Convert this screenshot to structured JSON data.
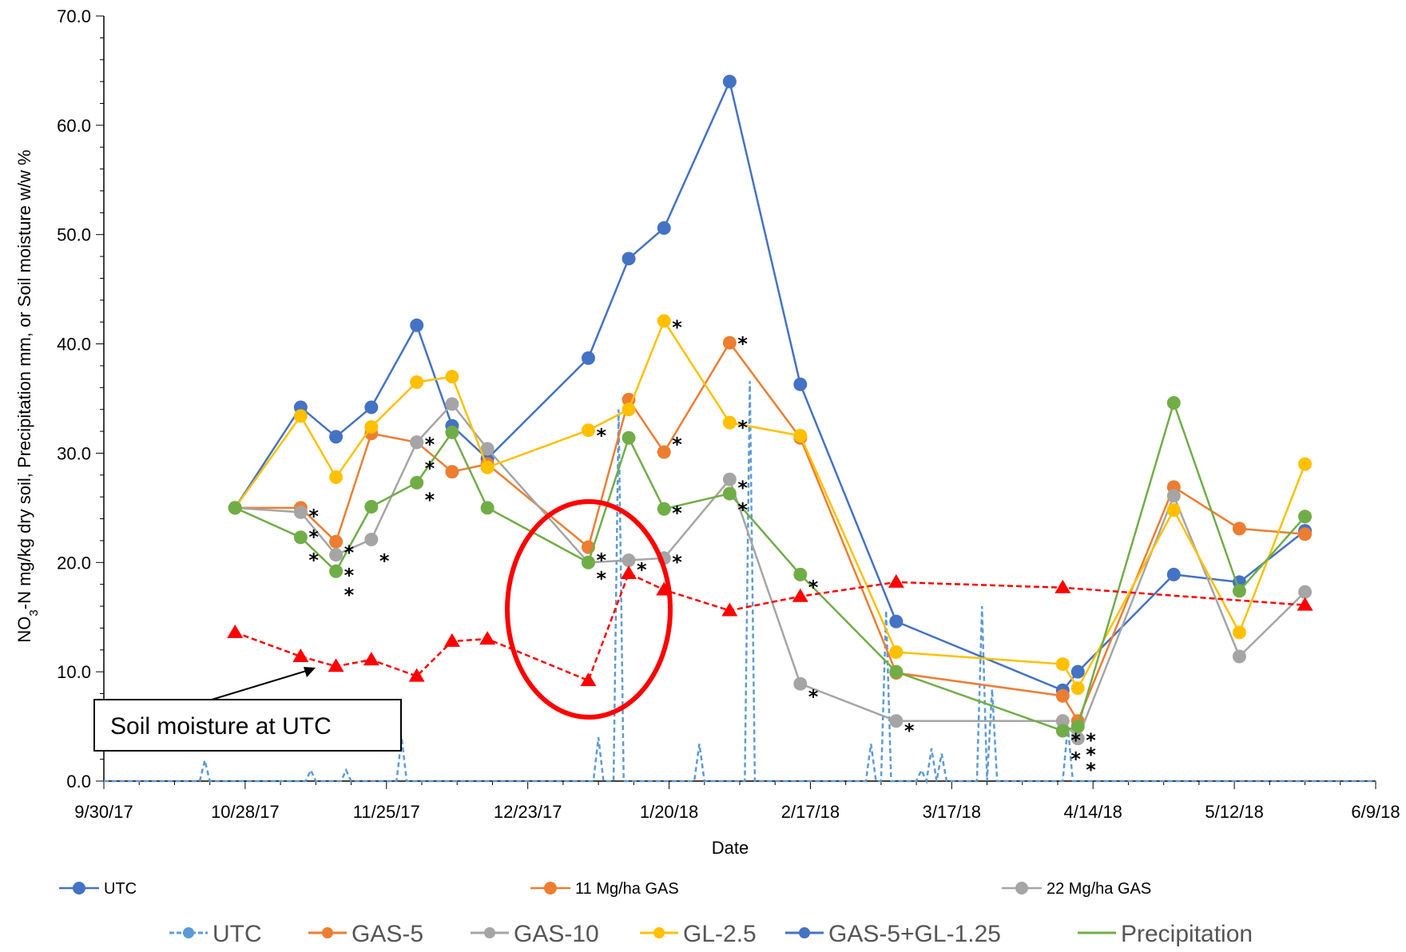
{
  "chart_data": {
    "type": "line",
    "xlabel": "Date",
    "ylabel_parts": [
      "NO",
      "3",
      "-N mg/kg dry soil, Precipitation mm, or Soil moisture w/w %"
    ],
    "ylim": [
      0,
      70
    ],
    "y_ticks": [
      "0.0",
      "10.0",
      "20.0",
      "30.0",
      "40.0",
      "50.0",
      "60.0",
      "70.0"
    ],
    "x_ticks": [
      "9/30/17",
      "10/28/17",
      "11/25/17",
      "12/23/17",
      "1/20/18",
      "2/17/18",
      "3/17/18",
      "4/14/18",
      "5/12/18",
      "6/9/18"
    ],
    "x_tick_days": [
      0,
      28,
      56,
      84,
      112,
      140,
      168,
      196,
      224,
      252
    ],
    "x_start": "9/30/17",
    "series": [
      {
        "name": "GAS-5+GL-1.25",
        "color": "#4472C4",
        "marker": "circle",
        "points": [
          [
            "10/26/17",
            25.0
          ],
          [
            "11/8/17",
            34.2
          ],
          [
            "11/15/17",
            31.5
          ],
          [
            "11/22/17",
            34.2
          ],
          [
            "12/1/17",
            41.7
          ],
          [
            "12/8/17",
            32.5
          ],
          [
            "12/15/17",
            29.5
          ],
          [
            "1/4/18",
            38.7
          ],
          [
            "1/12/18",
            47.8
          ],
          [
            "1/19/18",
            50.6
          ],
          [
            "2/1/18",
            64.0
          ],
          [
            "2/15/18",
            36.3
          ],
          [
            "3/6/18",
            14.6
          ],
          [
            "4/8/18",
            8.3
          ],
          [
            "4/11/18",
            10.0
          ],
          [
            "4/30/18",
            18.9
          ],
          [
            "5/13/18",
            18.2
          ],
          [
            "5/26/18",
            22.9
          ]
        ]
      },
      {
        "name": "GAS-5",
        "color": "#ED7D31",
        "marker": "circle",
        "points": [
          [
            "10/26/17",
            25.0
          ],
          [
            "11/8/17",
            25.0
          ],
          [
            "11/15/17",
            21.9
          ],
          [
            "11/22/17",
            31.8
          ],
          [
            "12/1/17",
            31.0
          ],
          [
            "12/8/17",
            28.3
          ],
          [
            "12/15/17",
            29.0
          ],
          [
            "1/4/18",
            21.4
          ],
          [
            "1/12/18",
            34.9
          ],
          [
            "1/19/18",
            30.1
          ],
          [
            "2/1/18",
            40.1
          ],
          [
            "2/15/18",
            31.4
          ],
          [
            "3/6/18",
            9.9
          ],
          [
            "4/8/18",
            7.8
          ],
          [
            "4/11/18",
            5.5
          ],
          [
            "4/30/18",
            26.9
          ],
          [
            "5/13/18",
            23.1
          ],
          [
            "5/26/18",
            22.6
          ]
        ]
      },
      {
        "name": "GAS-10",
        "color": "#A5A5A5",
        "marker": "circle",
        "points": [
          [
            "10/26/17",
            25.0
          ],
          [
            "11/8/17",
            24.6
          ],
          [
            "11/15/17",
            20.7
          ],
          [
            "11/22/17",
            22.1
          ],
          [
            "12/1/17",
            31.0
          ],
          [
            "12/8/17",
            34.5
          ],
          [
            "12/15/17",
            30.4
          ],
          [
            "1/4/18",
            20.0
          ],
          [
            "1/12/18",
            20.2
          ],
          [
            "1/19/18",
            20.4
          ],
          [
            "2/1/18",
            27.6
          ],
          [
            "2/15/18",
            8.9
          ],
          [
            "3/6/18",
            5.5
          ],
          [
            "4/8/18",
            5.5
          ],
          [
            "4/11/18",
            3.9
          ],
          [
            "4/30/18",
            26.1
          ],
          [
            "5/13/18",
            11.4
          ],
          [
            "5/26/18",
            17.3
          ]
        ]
      },
      {
        "name": "GL-2.5",
        "color": "#FFC000",
        "marker": "circle",
        "points": [
          [
            "10/26/17",
            25.0
          ],
          [
            "11/8/17",
            33.4
          ],
          [
            "11/15/17",
            27.8
          ],
          [
            "11/22/17",
            32.4
          ],
          [
            "12/1/17",
            36.5
          ],
          [
            "12/8/17",
            37.0
          ],
          [
            "12/15/17",
            28.7
          ],
          [
            "1/4/18",
            32.1
          ],
          [
            "1/12/18",
            34.0
          ],
          [
            "1/19/18",
            42.1
          ],
          [
            "2/1/18",
            32.8
          ],
          [
            "2/15/18",
            31.6
          ],
          [
            "3/6/18",
            11.8
          ],
          [
            "4/8/18",
            10.7
          ],
          [
            "4/11/18",
            8.5
          ],
          [
            "4/30/18",
            24.8
          ],
          [
            "5/13/18",
            13.6
          ],
          [
            "5/26/18",
            29.0
          ]
        ]
      },
      {
        "name": "Precipitation",
        "color": "#70AD47",
        "marker": "circle",
        "points": [
          [
            "10/26/17",
            25.0
          ],
          [
            "11/8/17",
            22.3
          ],
          [
            "11/15/17",
            19.2
          ],
          [
            "11/22/17",
            25.1
          ],
          [
            "12/1/17",
            27.3
          ],
          [
            "12/8/17",
            31.9
          ],
          [
            "12/15/17",
            25.0
          ],
          [
            "1/4/18",
            20.0
          ],
          [
            "1/12/18",
            31.4
          ],
          [
            "1/19/18",
            24.9
          ],
          [
            "2/1/18",
            26.3
          ],
          [
            "2/15/18",
            18.9
          ],
          [
            "3/6/18",
            10.0
          ],
          [
            "4/8/18",
            4.6
          ],
          [
            "4/11/18",
            5.0
          ],
          [
            "4/30/18",
            34.6
          ],
          [
            "5/13/18",
            17.4
          ],
          [
            "5/26/18",
            24.2
          ]
        ]
      }
    ],
    "soil_moisture": {
      "name": "Soil moisture at UTC",
      "color": "#FF0000",
      "marker": "triangle",
      "points": [
        [
          "10/26/17",
          13.6
        ],
        [
          "11/8/17",
          11.4
        ],
        [
          "11/15/17",
          10.5
        ],
        [
          "11/22/17",
          11.1
        ],
        [
          "12/1/17",
          9.6
        ],
        [
          "12/8/17",
          12.8
        ],
        [
          "12/15/17",
          13.0
        ],
        [
          "1/4/18",
          9.2
        ],
        [
          "1/12/18",
          19.0
        ],
        [
          "1/19/18",
          17.5
        ],
        [
          "2/1/18",
          15.6
        ],
        [
          "2/15/18",
          16.9
        ],
        [
          "3/6/18",
          18.2
        ],
        [
          "4/8/18",
          17.7
        ],
        [
          "5/26/18",
          16.1
        ]
      ]
    },
    "precipitation": {
      "name": "UTC",
      "color": "#5B9BD5",
      "points": [
        [
          "10/19/17",
          0
        ],
        [
          "10/20/17",
          1.9
        ],
        [
          "10/21/17",
          0
        ],
        [
          "11/9/17",
          0
        ],
        [
          "11/10/17",
          1.0
        ],
        [
          "11/11/17",
          0
        ],
        [
          "11/16/17",
          0
        ],
        [
          "11/17/17",
          1.0
        ],
        [
          "11/18/17",
          0
        ],
        [
          "11/27/17",
          0
        ],
        [
          "11/28/17",
          4.0
        ],
        [
          "11/29/17",
          0
        ],
        [
          "1/5/18",
          0
        ],
        [
          "1/6/18",
          4.0
        ],
        [
          "1/7/18",
          0
        ],
        [
          "1/9/18",
          0
        ],
        [
          "1/10/18",
          34.0
        ],
        [
          "1/11/18",
          0
        ],
        [
          "1/25/18",
          0
        ],
        [
          "1/26/18",
          3.4
        ],
        [
          "1/27/18",
          0
        ],
        [
          "2/4/18",
          0
        ],
        [
          "2/5/18",
          36.6
        ],
        [
          "2/6/18",
          0
        ],
        [
          "2/28/18",
          0
        ],
        [
          "3/1/18",
          3.4
        ],
        [
          "3/2/18",
          0
        ],
        [
          "3/3/18",
          0
        ],
        [
          "3/4/18",
          15.6
        ],
        [
          "3/5/18",
          0
        ],
        [
          "3/10/18",
          0
        ],
        [
          "3/11/18",
          1.0
        ],
        [
          "3/12/18",
          0
        ],
        [
          "3/13/18",
          3.0
        ],
        [
          "3/14/18",
          0
        ],
        [
          "3/15/18",
          2.5
        ],
        [
          "3/16/18",
          0
        ],
        [
          "3/22/18",
          0
        ],
        [
          "3/23/18",
          16.0
        ],
        [
          "3/24/18",
          0
        ],
        [
          "3/25/18",
          8.4
        ],
        [
          "3/26/18",
          0
        ],
        [
          "4/8/18",
          0
        ],
        [
          "4/9/18",
          5.0
        ],
        [
          "4/10/18",
          0
        ]
      ]
    },
    "legend_row1": [
      {
        "label": "UTC",
        "color": "#4472C4"
      },
      {
        "label": "11 Mg/ha GAS",
        "color": "#ED7D31"
      },
      {
        "label": "22 Mg/ha GAS",
        "color": "#A5A5A5"
      }
    ],
    "legend_row2": [
      {
        "label": "UTC",
        "color": "#5B9BD5",
        "dashed": true
      },
      {
        "label": "GAS-5",
        "color": "#ED7D31"
      },
      {
        "label": "GAS-10",
        "color": "#A5A5A5"
      },
      {
        "label": "GL-2.5",
        "color": "#FFC000"
      },
      {
        "label": "GAS-5+GL-1.25",
        "color": "#4472C4"
      },
      {
        "label": "Precipitation",
        "color": "#70AD47",
        "no_marker": true
      }
    ],
    "annotation": "Soil moisture at UTC",
    "significance_marks": [
      {
        "date": "11/8/17",
        "y": 24.8
      },
      {
        "date": "11/8/17",
        "y": 22.9
      },
      {
        "date": "11/8/17",
        "y": 20.8
      },
      {
        "date": "11/15/17",
        "y": 21.5
      },
      {
        "date": "11/15/17",
        "y": 19.4
      },
      {
        "date": "11/15/17",
        "y": 17.6
      },
      {
        "date": "11/22/17",
        "y": 20.7
      },
      {
        "date": "12/1/17",
        "y": 31.4
      },
      {
        "date": "12/1/17",
        "y": 29.2
      },
      {
        "date": "12/1/17",
        "y": 26.3
      },
      {
        "date": "1/4/18",
        "y": 32.2
      },
      {
        "date": "1/4/18",
        "y": 20.8
      },
      {
        "date": "1/4/18",
        "y": 19.1
      },
      {
        "date": "1/12/18",
        "y": 19.9
      },
      {
        "date": "1/19/18",
        "y": 42.1
      },
      {
        "date": "1/19/18",
        "y": 31.4
      },
      {
        "date": "1/19/18",
        "y": 25.1
      },
      {
        "date": "1/19/18",
        "y": 20.6
      },
      {
        "date": "2/1/18",
        "y": 40.6
      },
      {
        "date": "2/1/18",
        "y": 32.9
      },
      {
        "date": "2/1/18",
        "y": 27.4
      },
      {
        "date": "2/1/18",
        "y": 25.4
      },
      {
        "date": "2/15/18",
        "y": 18.3
      },
      {
        "date": "2/15/18",
        "y": 8.3
      },
      {
        "date": "3/6/18",
        "y": 5.2
      },
      {
        "date": "4/8/18",
        "y": 4.3
      },
      {
        "date": "4/8/18",
        "y": 2.6
      },
      {
        "date": "4/11/18",
        "y": 4.3
      },
      {
        "date": "4/11/18",
        "y": 3.0
      },
      {
        "date": "4/11/18",
        "y": 1.6
      }
    ]
  }
}
